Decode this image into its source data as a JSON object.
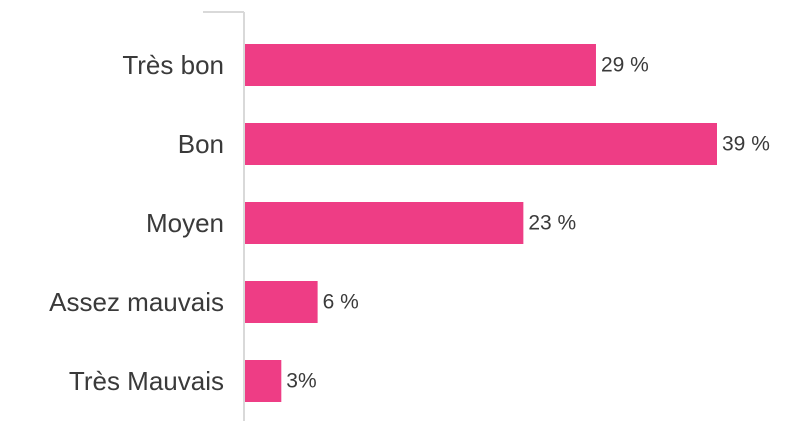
{
  "chart_data": {
    "type": "bar",
    "orientation": "horizontal",
    "categories": [
      "Très bon",
      "Bon",
      "Moyen",
      "Assez mauvais",
      "Très Mauvais"
    ],
    "values": [
      29,
      39,
      23,
      6,
      3
    ],
    "value_labels": [
      "29 %",
      "39 %",
      "23 %",
      "6 %",
      "3%"
    ],
    "xlim": [
      0,
      40
    ],
    "grid": false,
    "legend": "none",
    "colors": {
      "bar": "#ee3d85",
      "axis": "#d9d9d9",
      "text": "#3a3a3a"
    }
  }
}
